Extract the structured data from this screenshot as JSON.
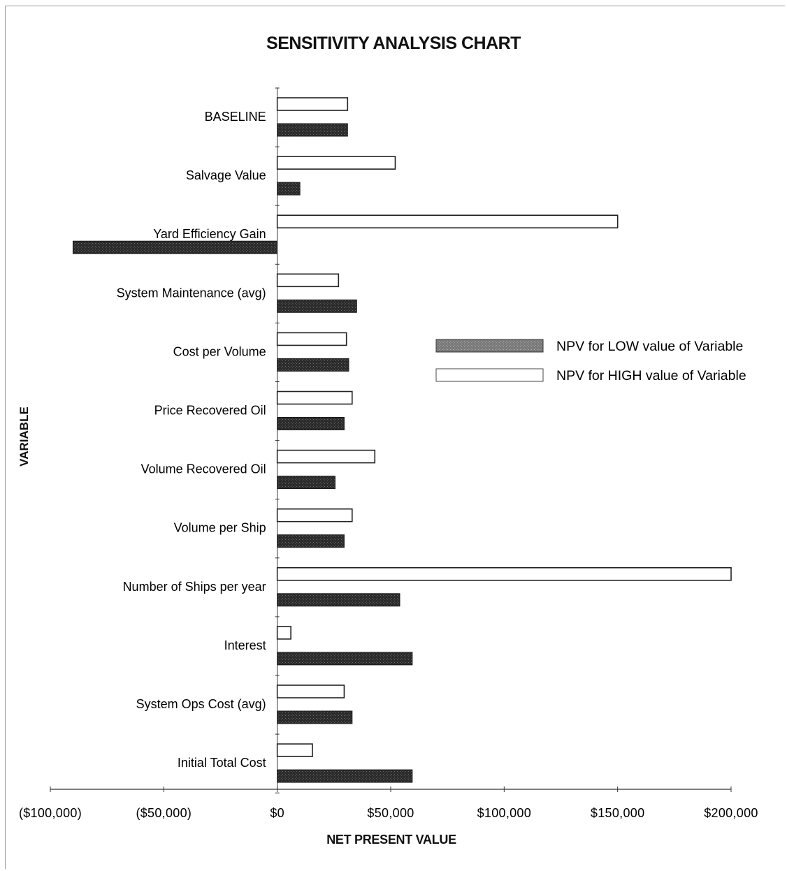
{
  "chart_data": {
    "type": "bar",
    "orientation": "horizontal",
    "title": "SENSITIVITY ANALYSIS CHART",
    "xlabel": "NET PRESENT VALUE",
    "ylabel": "VARIABLE",
    "xlim": [
      -100000,
      200000
    ],
    "x_ticks": [
      -100000,
      -50000,
      0,
      50000,
      100000,
      150000,
      200000
    ],
    "x_tick_labels": [
      "($100,000)",
      "($50,000)",
      "$0",
      "$50,000",
      "$100,000",
      "$150,000",
      "$200,000"
    ],
    "categories": [
      "BASELINE",
      "Salvage Value",
      "Yard Efficiency Gain",
      "System Maintenance (avg)",
      "Cost per Volume",
      "Price Recovered Oil",
      "Volume Recovered Oil",
      "Volume per Ship",
      "Number of Ships per year",
      "Interest",
      "System Ops Cost (avg)",
      "Initial Total Cost"
    ],
    "series": [
      {
        "name": "NPV for HIGH value of Variable",
        "color": "#ffffff",
        "values": [
          31000,
          52000,
          150000,
          27000,
          30500,
          33000,
          43000,
          33000,
          200000,
          6000,
          29500,
          15500
        ]
      },
      {
        "name": "NPV for LOW value of Variable",
        "color": "#2b2b2b",
        "values": [
          31000,
          10000,
          -90000,
          35000,
          31500,
          29500,
          25500,
          29500,
          54000,
          59500,
          33000,
          59500
        ]
      }
    ],
    "legend_position": "right",
    "grid": false
  }
}
